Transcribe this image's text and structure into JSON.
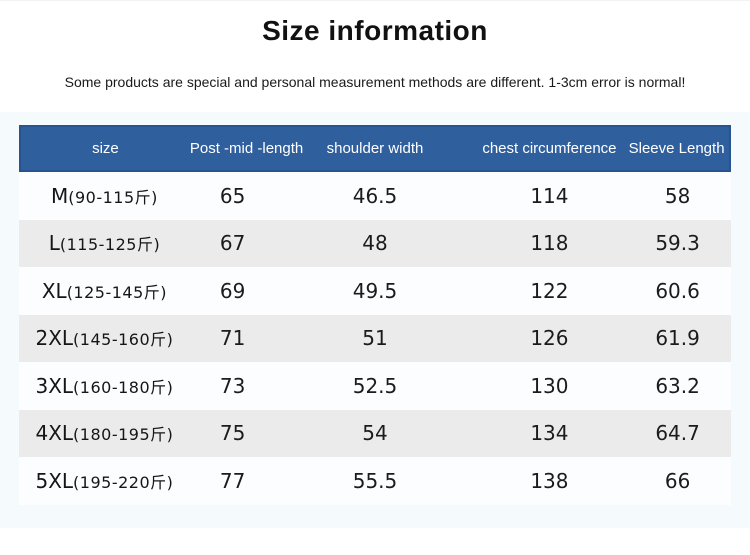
{
  "page": {
    "title": "Size information",
    "subtitle": "Some products are special and personal measurement methods are different. 1-3cm error is normal!"
  },
  "table": {
    "columns": [
      "size",
      "Post -mid -length",
      "shoulder width",
      "chest circumference",
      "Sleeve Length"
    ],
    "rows": [
      {
        "size_code": "M",
        "size_range": "(90-115斤)",
        "values": [
          "65",
          "46.5",
          "114",
          "58"
        ]
      },
      {
        "size_code": "L",
        "size_range": "(115-125斤)",
        "values": [
          "67",
          "48",
          "118",
          "59.3"
        ]
      },
      {
        "size_code": "XL",
        "size_range": "(125-145斤)",
        "values": [
          "69",
          "49.5",
          "122",
          "60.6"
        ]
      },
      {
        "size_code": "2XL",
        "size_range": "(145-160斤)",
        "values": [
          "71",
          "51",
          "126",
          "61.9"
        ]
      },
      {
        "size_code": "3XL",
        "size_range": "(160-180斤)",
        "values": [
          "73",
          "52.5",
          "130",
          "63.2"
        ]
      },
      {
        "size_code": "4XL",
        "size_range": "(180-195斤)",
        "values": [
          "75",
          "54",
          "134",
          "64.7"
        ]
      },
      {
        "size_code": "5XL",
        "size_range": "(195-220斤)",
        "values": [
          "77",
          "55.5",
          "138",
          "66"
        ]
      }
    ]
  },
  "colors": {
    "header_bg": "#305f9e",
    "header_border": "#27538e",
    "row_light": "#fbfdfe",
    "row_alt": "#ebebeb",
    "panel_bg": "#f5fafd",
    "header_text": "#ffffff",
    "body_text": "#1b1b1b"
  }
}
